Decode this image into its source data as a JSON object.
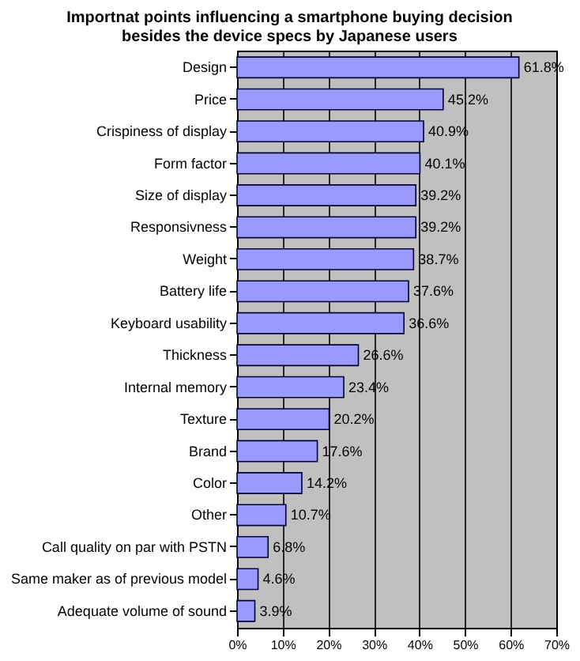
{
  "chart_data": {
    "type": "bar",
    "orientation": "horizontal",
    "title": "Importnat points influencing a smartphone buying decision besides the device specs by Japanese users",
    "categories": [
      "Design",
      "Price",
      "Crispiness of display",
      "Form factor",
      "Size of display",
      "Responsivness",
      "Weight",
      "Battery life",
      "Keyboard usability",
      "Thickness",
      "Internal memory",
      "Texture",
      "Brand",
      "Color",
      "Other",
      "Call quality on par with PSTN",
      "Same maker as of previous model",
      "Adequate volume of sound"
    ],
    "values": [
      61.8,
      45.2,
      40.9,
      40.1,
      39.2,
      39.2,
      38.7,
      37.6,
      36.6,
      26.6,
      23.4,
      20.2,
      17.6,
      14.2,
      10.7,
      6.8,
      4.6,
      3.9
    ],
    "value_labels": [
      "61.8%",
      "45.2%",
      "40.9%",
      "40.1%",
      "39.2%",
      "39.2%",
      "38.7%",
      "37.6%",
      "36.6%",
      "26.6%",
      "23.4%",
      "20.2%",
      "17.6%",
      "14.2%",
      "10.7%",
      "6.8%",
      "4.6%",
      "3.9%"
    ],
    "color": "#9999ff",
    "xlim": [
      0,
      70
    ],
    "xticks": [
      {
        "value": 0,
        "label": "0%"
      },
      {
        "value": 10,
        "label": "10%"
      },
      {
        "value": 20,
        "label": "20%"
      },
      {
        "value": 30,
        "label": "30%"
      },
      {
        "value": 40,
        "label": "40%"
      },
      {
        "value": 50,
        "label": "50%"
      },
      {
        "value": 60,
        "label": "60%"
      },
      {
        "value": 70,
        "label": "70%"
      }
    ],
    "grid": "x"
  }
}
